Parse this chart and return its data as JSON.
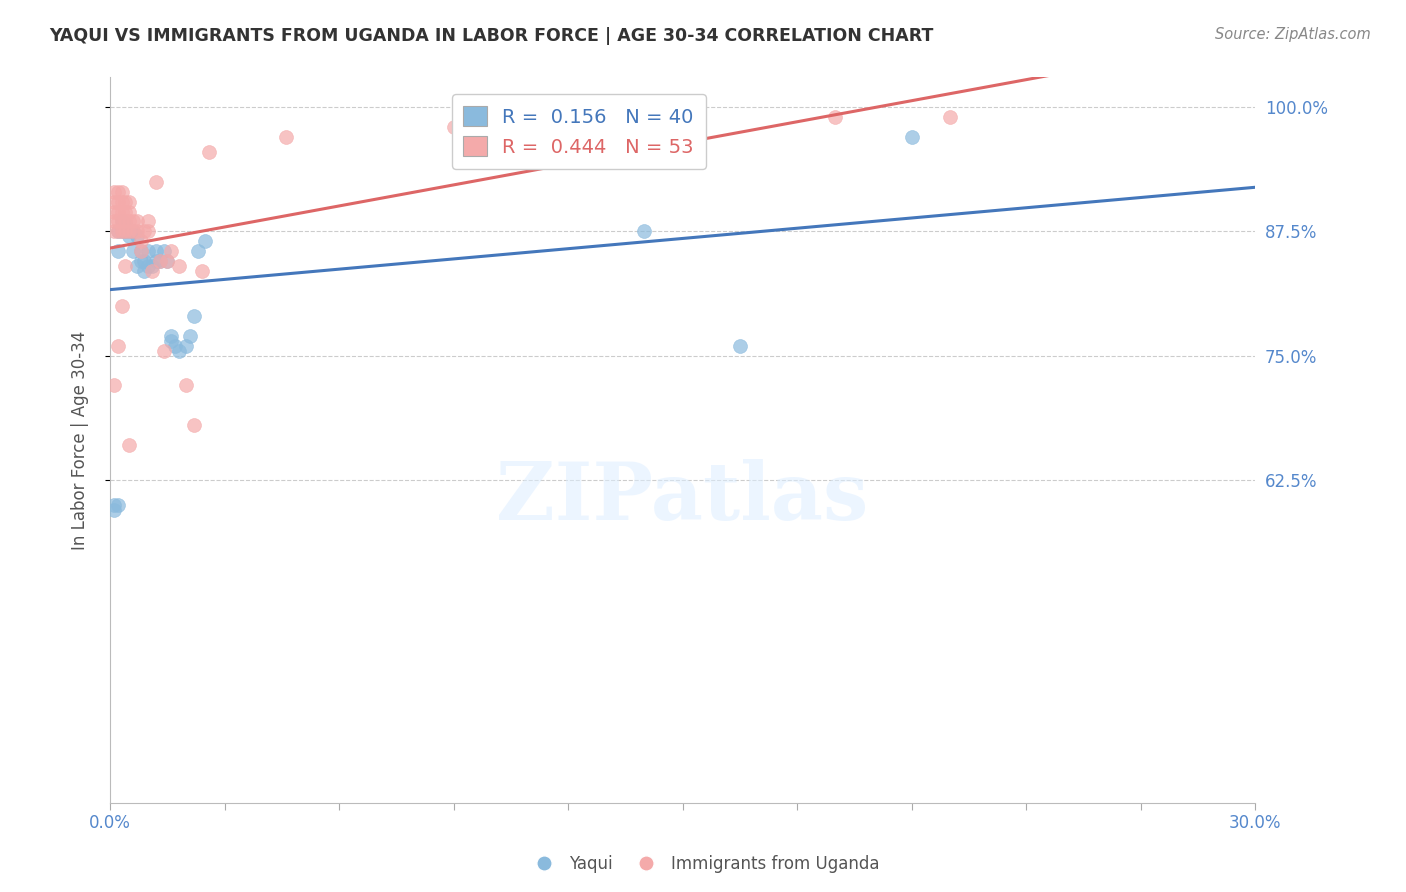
{
  "title": "YAQUI VS IMMIGRANTS FROM UGANDA IN LABOR FORCE | AGE 30-34 CORRELATION CHART",
  "source": "Source: ZipAtlas.com",
  "ylabel": "In Labor Force | Age 30-34",
  "y_tick_labels": [
    "100.0%",
    "87.5%",
    "75.0%",
    "62.5%"
  ],
  "y_tick_values": [
    1.0,
    0.875,
    0.75,
    0.625
  ],
  "x_min": 0.0,
  "x_max": 0.3,
  "y_min": 0.3,
  "y_max": 1.03,
  "legend_labels": [
    "Yaqui",
    "Immigrants from Uganda"
  ],
  "r_blue": 0.156,
  "n_blue": 40,
  "r_pink": 0.444,
  "n_pink": 53,
  "blue_color": "#8ABADD",
  "pink_color": "#F4AAAA",
  "blue_line_color": "#4477BB",
  "pink_line_color": "#DD6666",
  "grid_color": "#CCCCCC",
  "title_color": "#333333",
  "axis_label_color": "#555555",
  "tick_label_color": "#5588CC",
  "right_tick_color": "#5588CC",
  "blue_scatter_x": [
    0.001,
    0.002,
    0.002,
    0.003,
    0.003,
    0.004,
    0.004,
    0.004,
    0.005,
    0.005,
    0.006,
    0.006,
    0.007,
    0.007,
    0.008,
    0.008,
    0.009,
    0.009,
    0.01,
    0.01,
    0.011,
    0.012,
    0.012,
    0.013,
    0.014,
    0.015,
    0.016,
    0.016,
    0.017,
    0.018,
    0.02,
    0.021,
    0.022,
    0.023,
    0.025,
    0.14,
    0.165,
    0.21,
    0.001,
    0.002
  ],
  "blue_scatter_y": [
    0.595,
    0.855,
    0.875,
    0.875,
    0.885,
    0.875,
    0.878,
    0.882,
    0.875,
    0.87,
    0.855,
    0.875,
    0.84,
    0.87,
    0.845,
    0.855,
    0.835,
    0.845,
    0.84,
    0.855,
    0.84,
    0.845,
    0.855,
    0.845,
    0.855,
    0.845,
    0.77,
    0.765,
    0.76,
    0.755,
    0.76,
    0.77,
    0.79,
    0.855,
    0.865,
    0.875,
    0.76,
    0.97,
    0.6,
    0.6
  ],
  "pink_scatter_x": [
    0.001,
    0.001,
    0.001,
    0.001,
    0.001,
    0.002,
    0.002,
    0.002,
    0.002,
    0.002,
    0.003,
    0.003,
    0.003,
    0.003,
    0.003,
    0.004,
    0.004,
    0.004,
    0.004,
    0.005,
    0.005,
    0.005,
    0.005,
    0.006,
    0.006,
    0.007,
    0.007,
    0.008,
    0.008,
    0.009,
    0.01,
    0.01,
    0.011,
    0.012,
    0.013,
    0.014,
    0.015,
    0.016,
    0.018,
    0.02,
    0.022,
    0.024,
    0.026,
    0.046,
    0.09,
    0.12,
    0.19,
    0.22,
    0.001,
    0.002,
    0.003,
    0.004,
    0.005
  ],
  "pink_scatter_y": [
    0.875,
    0.885,
    0.895,
    0.905,
    0.915,
    0.875,
    0.885,
    0.895,
    0.905,
    0.915,
    0.875,
    0.885,
    0.895,
    0.905,
    0.915,
    0.875,
    0.885,
    0.895,
    0.905,
    0.875,
    0.885,
    0.895,
    0.905,
    0.875,
    0.885,
    0.875,
    0.885,
    0.855,
    0.865,
    0.875,
    0.875,
    0.885,
    0.835,
    0.925,
    0.845,
    0.755,
    0.845,
    0.855,
    0.84,
    0.72,
    0.68,
    0.835,
    0.955,
    0.97,
    0.98,
    0.98,
    0.99,
    0.99,
    0.72,
    0.76,
    0.8,
    0.84,
    0.66
  ]
}
